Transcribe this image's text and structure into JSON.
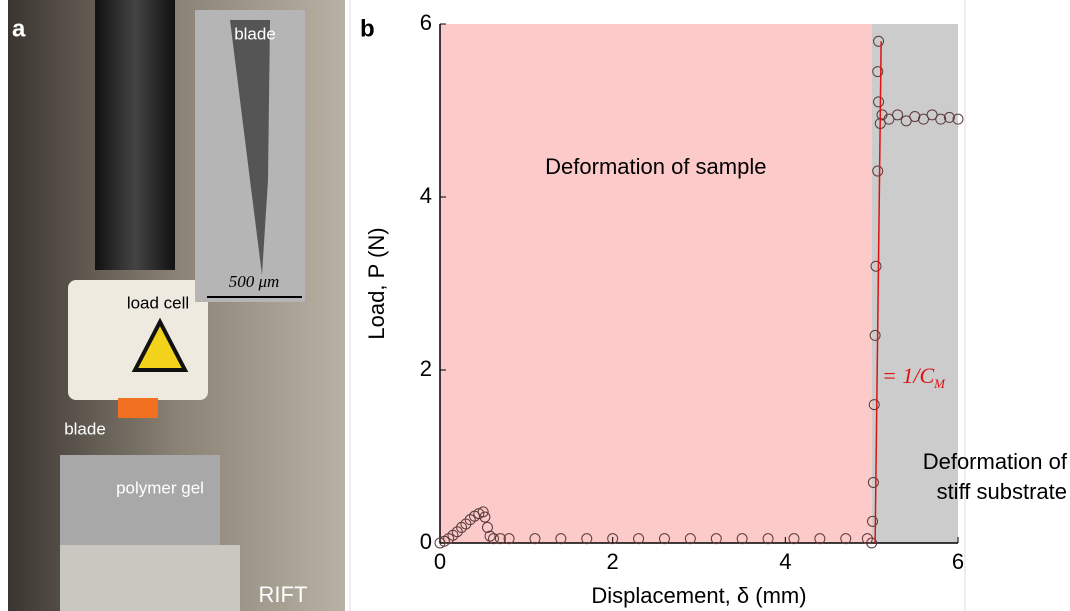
{
  "panel_a": {
    "label": "a",
    "inset_label": "blade",
    "scale_bar": "500 μm",
    "load_cell": "load cell",
    "blade": "blade",
    "gel": "polymer gel",
    "name": "RIFT"
  },
  "chart_data": {
    "type": "scatter",
    "panel_label": "b",
    "xlabel": "Displacement, δ (mm)",
    "ylabel": "Load, P (N)",
    "xlim": [
      0,
      6
    ],
    "ylim": [
      0,
      6
    ],
    "xticks": [
      0,
      2,
      4,
      6
    ],
    "yticks": [
      0,
      2,
      4,
      6
    ],
    "regions": [
      {
        "label": "Deformation of sample",
        "range": [
          0,
          5
        ],
        "color": "#fdcaca"
      },
      {
        "label": [
          "Deformation of",
          "stiff substrate"
        ],
        "range": [
          5,
          6
        ],
        "color": "#cccccc"
      }
    ],
    "fit_line": {
      "label": "= 1/C",
      "label_sub": "M",
      "x": [
        5.04,
        5.11
      ],
      "y": [
        0,
        5.8
      ],
      "color": "#e01010"
    },
    "series": [
      {
        "color": "#5a3a3a",
        "x": [
          0,
          0.05,
          0.1,
          0.15,
          0.2,
          0.25,
          0.3,
          0.35,
          0.4,
          0.45,
          0.5,
          0.52,
          0.55,
          0.58,
          0.62,
          0.7,
          0.8,
          1.1,
          1.4,
          1.7,
          2.0,
          2.3,
          2.6,
          2.9,
          3.2,
          3.5,
          3.8,
          4.1,
          4.4,
          4.7,
          4.95,
          5.0,
          5.01,
          5.02,
          5.03,
          5.04,
          5.05,
          5.07,
          5.08,
          5.07,
          5.08,
          5.1,
          5.12,
          5.2,
          5.3,
          5.4,
          5.5,
          5.6,
          5.7,
          5.8,
          5.9,
          6.0
        ],
        "values": [
          0,
          0.02,
          0.05,
          0.09,
          0.13,
          0.18,
          0.22,
          0.27,
          0.31,
          0.34,
          0.36,
          0.3,
          0.18,
          0.08,
          0.05,
          0.05,
          0.05,
          0.05,
          0.05,
          0.05,
          0.05,
          0.05,
          0.05,
          0.05,
          0.05,
          0.05,
          0.05,
          0.05,
          0.05,
          0.05,
          0.05,
          0.0,
          0.25,
          0.7,
          1.6,
          2.4,
          3.2,
          4.3,
          5.1,
          5.45,
          5.8,
          4.85,
          4.95,
          4.9,
          4.95,
          4.88,
          4.93,
          4.9,
          4.95,
          4.9,
          4.92,
          4.9
        ]
      }
    ]
  }
}
